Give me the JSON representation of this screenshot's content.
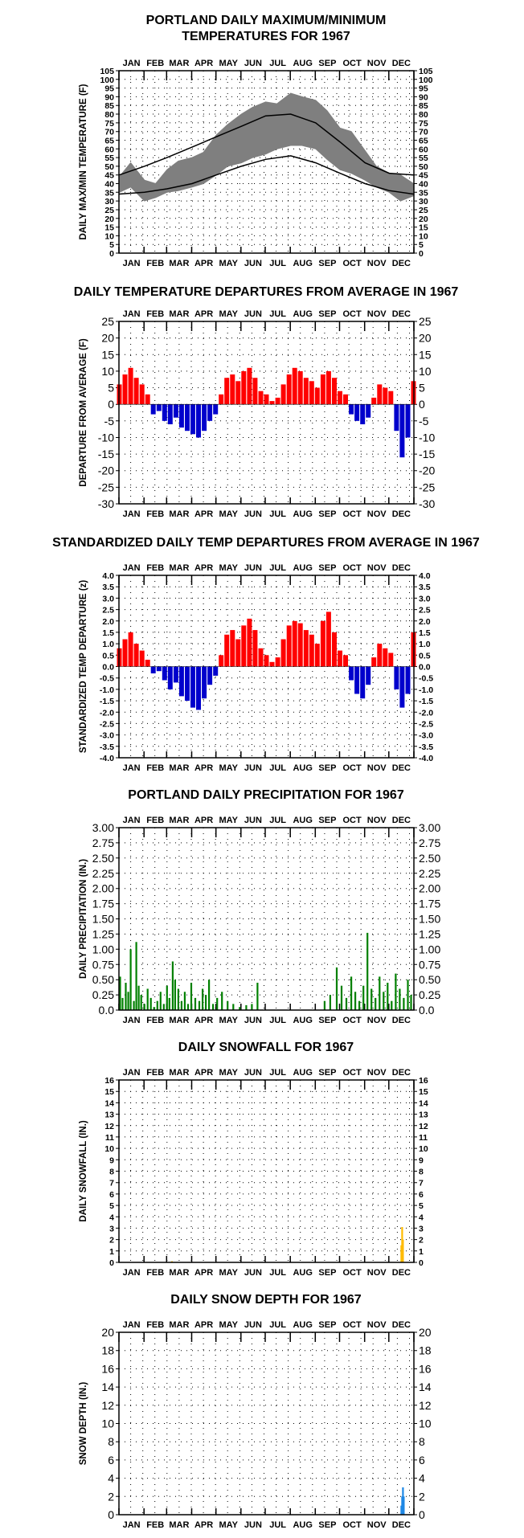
{
  "colors": {
    "frame": "#000000",
    "grid_dots": "#000000",
    "temp_band": "#7f7f7f",
    "normal_lines": "#000000",
    "warm": "#ff0000",
    "cold": "#0000cc",
    "precip": "#008000",
    "snowfall": "#ffbb00",
    "snow_depth": "#1e88e5"
  },
  "months": [
    "JAN",
    "FEB",
    "MAR",
    "APR",
    "MAY",
    "JUN",
    "JUL",
    "AUG",
    "SEP",
    "OCT",
    "NOV",
    "DEC"
  ],
  "chart_data": [
    {
      "id": "temps",
      "type": "area",
      "title": [
        "PORTLAND DAILY MAXIMUM/MINIMUM",
        "TEMPERATURES FOR 1967"
      ],
      "ylabel": "DAILY MAX/MIN TEMPERATURE (F)",
      "ylim": [
        0,
        105
      ],
      "yticks": [
        0,
        5,
        10,
        15,
        20,
        25,
        30,
        35,
        40,
        45,
        50,
        55,
        60,
        65,
        70,
        75,
        80,
        85,
        90,
        95,
        100,
        105
      ],
      "x_unit": "day of year 1967",
      "grid": true,
      "series": [
        {
          "name": "daily max",
          "x": [
            1,
            15,
            32,
            46,
            60,
            74,
            91,
            105,
            121,
            135,
            152,
            166,
            182,
            196,
            213,
            227,
            244,
            258,
            274,
            288,
            305,
            319,
            335,
            349,
            365
          ],
          "values": [
            44,
            52,
            42,
            40,
            48,
            53,
            55,
            58,
            68,
            74,
            80,
            84,
            87,
            86,
            92,
            90,
            88,
            82,
            72,
            70,
            59,
            50,
            46,
            45,
            40
          ]
        },
        {
          "name": "daily min",
          "x": [
            1,
            15,
            32,
            46,
            60,
            74,
            91,
            105,
            121,
            135,
            152,
            166,
            182,
            196,
            213,
            227,
            244,
            258,
            274,
            288,
            305,
            319,
            335,
            349,
            365
          ],
          "values": [
            35,
            38,
            30,
            32,
            35,
            36,
            38,
            40,
            45,
            50,
            52,
            55,
            57,
            60,
            62,
            62,
            60,
            54,
            48,
            46,
            42,
            38,
            35,
            30,
            33
          ]
        },
        {
          "name": "normal max",
          "x": [
            1,
            32,
            60,
            91,
            121,
            152,
            182,
            213,
            244,
            274,
            305,
            335,
            365
          ],
          "values": [
            45,
            50,
            55,
            61,
            67,
            73,
            79,
            80,
            75,
            64,
            52,
            46,
            45
          ]
        },
        {
          "name": "normal min",
          "x": [
            1,
            32,
            60,
            91,
            121,
            152,
            182,
            213,
            244,
            274,
            305,
            335,
            365
          ],
          "values": [
            34,
            35,
            37,
            40,
            45,
            50,
            54,
            56,
            52,
            46,
            40,
            36,
            34
          ]
        }
      ]
    },
    {
      "id": "departures",
      "type": "bar",
      "title": [
        "DAILY TEMPERATURE DEPARTURES FROM AVERAGE IN 1967"
      ],
      "ylabel": "DEPARTURE FROM AVERAGE (F)",
      "ylim": [
        -30,
        25
      ],
      "yticks": [
        -30,
        -25,
        -20,
        -15,
        -10,
        -5,
        0,
        5,
        10,
        15,
        20,
        25
      ],
      "x_unit": "day of year 1967",
      "grid": true,
      "series": [
        {
          "name": "departure",
          "x": [
            1,
            8,
            15,
            22,
            29,
            36,
            43,
            50,
            57,
            64,
            71,
            78,
            85,
            92,
            99,
            106,
            113,
            120,
            127,
            134,
            141,
            148,
            155,
            162,
            169,
            176,
            183,
            190,
            197,
            204,
            211,
            218,
            225,
            232,
            239,
            246,
            253,
            260,
            267,
            274,
            281,
            288,
            295,
            302,
            309,
            316,
            323,
            330,
            337,
            344,
            351,
            358,
            365
          ],
          "values": [
            6,
            9,
            11,
            8,
            6,
            3,
            -3,
            -2,
            -5,
            -6,
            -4,
            -7,
            -8,
            -9,
            -10,
            -8,
            -5,
            -3,
            3,
            8,
            9,
            7,
            10,
            11,
            8,
            4,
            3,
            1,
            2,
            6,
            9,
            11,
            10,
            8,
            7,
            5,
            9,
            10,
            8,
            4,
            3,
            -3,
            -5,
            -6,
            -4,
            2,
            6,
            5,
            4,
            -8,
            -16,
            -10,
            7
          ]
        }
      ]
    },
    {
      "id": "standardized",
      "type": "bar",
      "title": [
        "STANDARDIZED DAILY TEMP DEPARTURES FROM AVERAGE IN 1967"
      ],
      "ylabel": "STANDARDIZED TEMP DEPARTURE (z)",
      "ylim": [
        -4,
        4
      ],
      "yticks": [
        -4,
        -3.5,
        -3,
        -2.5,
        -2,
        -1.5,
        -1,
        -0.5,
        0,
        0.5,
        1,
        1.5,
        2,
        2.5,
        3,
        3.5,
        4
      ],
      "ytick_labels": [
        "-4.0",
        "-3.5",
        "-3.0",
        "-2.5",
        "-2.0",
        "-1.5",
        "-1.0",
        "-0.5",
        "0.0",
        "0.5",
        "1.0",
        "1.5",
        "2.0",
        "2.5",
        "3.0",
        "3.5",
        "4.0"
      ],
      "x_unit": "day of year 1967",
      "grid": true,
      "series": [
        {
          "name": "standardized departure",
          "x": [
            1,
            8,
            15,
            22,
            29,
            36,
            43,
            50,
            57,
            64,
            71,
            78,
            85,
            92,
            99,
            106,
            113,
            120,
            127,
            134,
            141,
            148,
            155,
            162,
            169,
            176,
            183,
            190,
            197,
            204,
            211,
            218,
            225,
            232,
            239,
            246,
            253,
            260,
            267,
            274,
            281,
            288,
            295,
            302,
            309,
            316,
            323,
            330,
            337,
            344,
            351,
            358,
            365
          ],
          "values": [
            0.8,
            1.2,
            1.5,
            1.0,
            0.7,
            0.3,
            -0.3,
            -0.2,
            -0.6,
            -1.0,
            -0.7,
            -1.3,
            -1.5,
            -1.8,
            -1.9,
            -1.4,
            -0.8,
            -0.4,
            0.5,
            1.4,
            1.6,
            1.2,
            1.8,
            2.1,
            1.6,
            0.8,
            0.5,
            0.2,
            0.4,
            1.2,
            1.8,
            2.0,
            1.9,
            1.6,
            1.4,
            1.0,
            2.0,
            2.4,
            1.5,
            0.7,
            0.5,
            -0.6,
            -1.2,
            -1.4,
            -0.8,
            0.4,
            1.0,
            0.8,
            0.6,
            -1.0,
            -1.8,
            -1.2,
            1.5
          ]
        }
      ]
    },
    {
      "id": "precip",
      "type": "bar",
      "title": [
        "PORTLAND DAILY PRECIPITATION FOR 1967"
      ],
      "ylabel": "DAILY PRECIPITATION (IN.)",
      "ylim": [
        0,
        3
      ],
      "yticks": [
        0,
        0.25,
        0.5,
        0.75,
        1,
        1.25,
        1.5,
        1.75,
        2,
        2.25,
        2.5,
        2.75,
        3
      ],
      "ytick_labels": [
        "0.0",
        "0.25",
        "0.50",
        "0.75",
        "1.00",
        "1.25",
        "1.50",
        "1.75",
        "2.00",
        "2.25",
        "2.50",
        "2.75",
        "3.00"
      ],
      "x_unit": "day of year 1967",
      "grid": true,
      "series": [
        {
          "name": "precipitation",
          "x": [
            2,
            5,
            9,
            12,
            15,
            19,
            22,
            25,
            28,
            32,
            36,
            40,
            44,
            48,
            52,
            56,
            60,
            63,
            67,
            70,
            74,
            78,
            82,
            86,
            90,
            95,
            100,
            104,
            108,
            112,
            117,
            122,
            128,
            135,
            142,
            150,
            158,
            165,
            172,
            255,
            262,
            270,
            276,
            282,
            288,
            293,
            298,
            303,
            308,
            313,
            318,
            323,
            328,
            333,
            338,
            343,
            348,
            353,
            358,
            362
          ],
          "values": [
            0.55,
            0.2,
            0.45,
            0.3,
            1.0,
            0.15,
            1.12,
            0.4,
            0.25,
            0.1,
            0.35,
            0.2,
            0.05,
            0.15,
            0.3,
            0.1,
            0.4,
            0.2,
            0.8,
            0.5,
            0.35,
            0.15,
            0.3,
            0.1,
            0.45,
            0.2,
            0.15,
            0.35,
            0.25,
            0.5,
            0.1,
            0.2,
            0.3,
            0.15,
            0.1,
            0.05,
            0.08,
            0.1,
            0.45,
            0.15,
            0.25,
            0.7,
            0.4,
            0.2,
            0.55,
            0.3,
            0.15,
            0.4,
            1.27,
            0.35,
            0.2,
            0.55,
            0.3,
            0.45,
            0.15,
            0.6,
            0.35,
            0.2,
            0.5,
            0.25
          ]
        }
      ]
    },
    {
      "id": "snowfall",
      "type": "bar",
      "title": [
        "DAILY SNOWFALL FOR 1967"
      ],
      "ylabel": "DAILY SNOWFALL (IN.)",
      "ylim": [
        0,
        16
      ],
      "yticks": [
        0,
        1,
        2,
        3,
        4,
        5,
        6,
        7,
        8,
        9,
        10,
        11,
        12,
        13,
        14,
        15,
        16
      ],
      "x_unit": "day of year 1967",
      "grid": true,
      "series": [
        {
          "name": "snowfall",
          "x": [
            66,
            350,
            351,
            352
          ],
          "values": [
            0.1,
            1.5,
            3.1,
            2.0
          ]
        }
      ]
    },
    {
      "id": "snowdepth",
      "type": "bar",
      "title": [
        "DAILY SNOW DEPTH FOR 1967"
      ],
      "ylabel": "SNOW DEPTH (IN.)",
      "ylim": [
        0,
        20
      ],
      "yticks": [
        0,
        2,
        4,
        6,
        8,
        10,
        12,
        14,
        16,
        18,
        20
      ],
      "x_unit": "day of year 1967",
      "grid": true,
      "series": [
        {
          "name": "snow depth",
          "x": [
            350,
            351,
            352,
            353
          ],
          "values": [
            1.0,
            2.0,
            3.0,
            2.0
          ]
        }
      ]
    }
  ]
}
